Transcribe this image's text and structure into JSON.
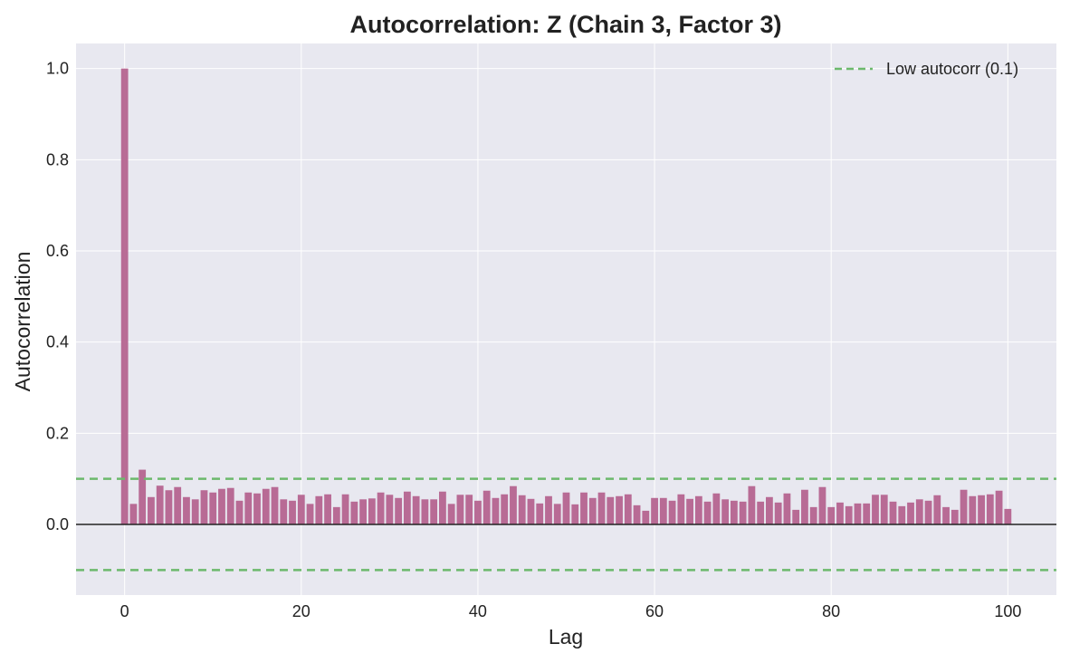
{
  "chart_data": {
    "type": "bar",
    "title": "Autocorrelation: Z (Chain 3, Factor 3)",
    "xlabel": "Lag",
    "ylabel": "Autocorrelation",
    "xlim": [
      -5.5,
      105.5
    ],
    "ylim": [
      -0.155,
      1.055
    ],
    "xticks": [
      0,
      20,
      40,
      60,
      80,
      100
    ],
    "yticks": [
      0.0,
      0.2,
      0.4,
      0.6,
      0.8,
      1.0
    ],
    "xtick_labels": [
      "0",
      "20",
      "40",
      "60",
      "80",
      "100"
    ],
    "ytick_labels": [
      "0.0",
      "0.2",
      "0.4",
      "0.6",
      "0.8",
      "1.0"
    ],
    "grid": true,
    "legend_position": "top-right",
    "bar_color": "#b5648f",
    "background_color": "#e8e8f0",
    "zero_line_color": "#222222",
    "threshold": {
      "label": "Low autocorr (0.1)",
      "values": [
        0.1,
        -0.1
      ],
      "color": "#6cb96c",
      "style": "dashed"
    },
    "x": [
      0,
      1,
      2,
      3,
      4,
      5,
      6,
      7,
      8,
      9,
      10,
      11,
      12,
      13,
      14,
      15,
      16,
      17,
      18,
      19,
      20,
      21,
      22,
      23,
      24,
      25,
      26,
      27,
      28,
      29,
      30,
      31,
      32,
      33,
      34,
      35,
      36,
      37,
      38,
      39,
      40,
      41,
      42,
      43,
      44,
      45,
      46,
      47,
      48,
      49,
      50,
      51,
      52,
      53,
      54,
      55,
      56,
      57,
      58,
      59,
      60,
      61,
      62,
      63,
      64,
      65,
      66,
      67,
      68,
      69,
      70,
      71,
      72,
      73,
      74,
      75,
      76,
      77,
      78,
      79,
      80,
      81,
      82,
      83,
      84,
      85,
      86,
      87,
      88,
      89,
      90,
      91,
      92,
      93,
      94,
      95,
      96,
      97,
      98,
      99,
      100
    ],
    "values": [
      1.0,
      0.045,
      0.12,
      0.06,
      0.085,
      0.075,
      0.082,
      0.06,
      0.055,
      0.075,
      0.07,
      0.078,
      0.08,
      0.052,
      0.07,
      0.068,
      0.078,
      0.082,
      0.055,
      0.052,
      0.065,
      0.045,
      0.062,
      0.066,
      0.038,
      0.066,
      0.05,
      0.055,
      0.057,
      0.07,
      0.065,
      0.058,
      0.072,
      0.062,
      0.055,
      0.055,
      0.072,
      0.045,
      0.065,
      0.065,
      0.052,
      0.074,
      0.058,
      0.066,
      0.084,
      0.064,
      0.056,
      0.046,
      0.062,
      0.045,
      0.07,
      0.044,
      0.07,
      0.058,
      0.07,
      0.06,
      0.062,
      0.066,
      0.042,
      0.03,
      0.058,
      0.058,
      0.052,
      0.066,
      0.056,
      0.062,
      0.05,
      0.068,
      0.055,
      0.052,
      0.05,
      0.084,
      0.05,
      0.06,
      0.048,
      0.068,
      0.032,
      0.076,
      0.038,
      0.082,
      0.038,
      0.048,
      0.04,
      0.046,
      0.046,
      0.065,
      0.065,
      0.05,
      0.04,
      0.048,
      0.055,
      0.052,
      0.064,
      0.038,
      0.032,
      0.076,
      0.062,
      0.064,
      0.066,
      0.074,
      0.034
    ]
  }
}
